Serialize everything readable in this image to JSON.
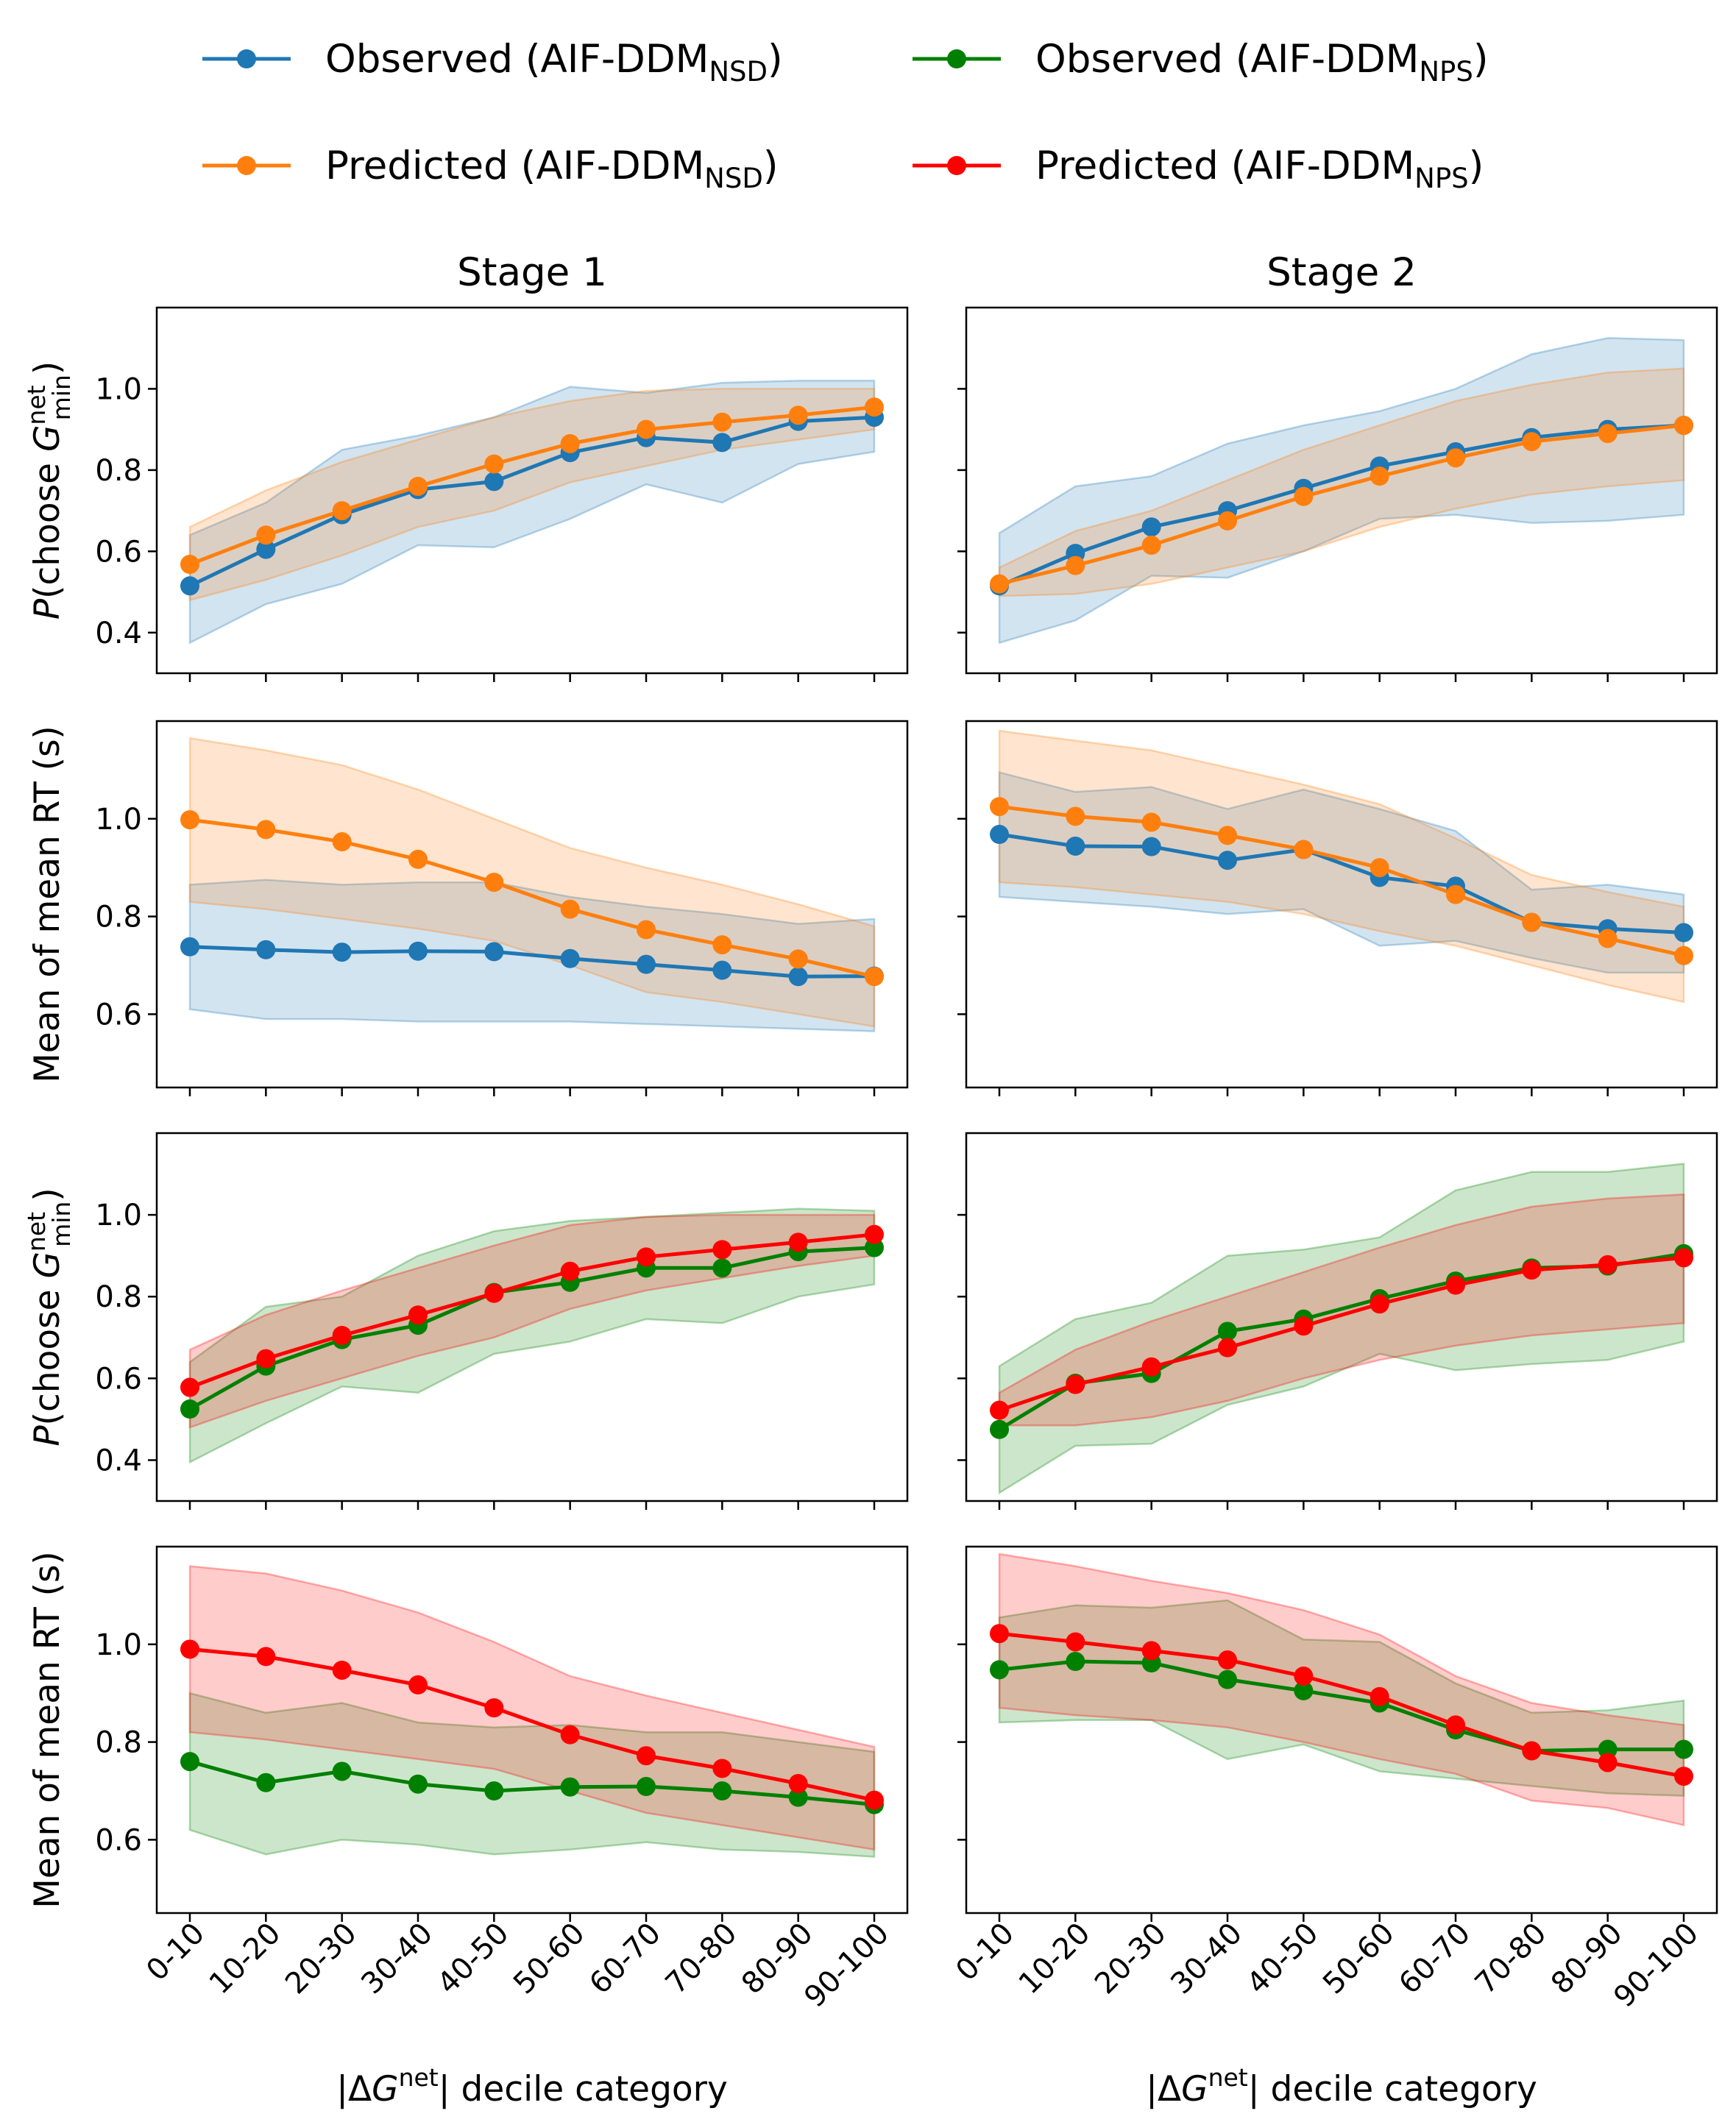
{
  "legend": [
    {
      "base": "Observed (AIF-DDM",
      "sub": "NSD",
      "tail": ")",
      "color": "#1f77b4"
    },
    {
      "base": "Observed (AIF-DDM",
      "sub": "NPS",
      "tail": ")",
      "color": "#008000"
    },
    {
      "base": "Predicted (AIF-DDM",
      "sub": "NSD",
      "tail": ")",
      "color": "#ff7f0e"
    },
    {
      "base": "Predicted (AIF-DDM",
      "sub": "NPS",
      "tail": ")",
      "color": "#ff0000"
    }
  ],
  "column_titles": [
    "Stage 1",
    "Stage 2"
  ],
  "xlabel": {
    "pre": "|ΔG",
    "sup": "net",
    "post": "| decile category"
  },
  "ylabel_rt": "Mean of mean RT (s)",
  "ylabel_p": {
    "italic": "P",
    "pre": "(choose ",
    "var": "G",
    "sup": "net",
    "sub": "min",
    "post": ")"
  },
  "colors": {
    "blue": "#1f77b4",
    "orange": "#ff7f0e",
    "green": "#008000",
    "red": "#ff0000"
  },
  "chart_data": [
    {
      "id": "r0c0",
      "type": "line",
      "row": 0,
      "col": 0,
      "ylabel": "p",
      "categories": [
        "0-10",
        "10-20",
        "20-30",
        "30-40",
        "40-50",
        "50-60",
        "60-70",
        "70-80",
        "80-90",
        "90-100"
      ],
      "ylim": [
        0.3,
        1.2
      ],
      "yticks": [
        0.4,
        0.6,
        0.8,
        1.0
      ],
      "series": [
        {
          "name": "Observed (AIF-DDM NSD)",
          "color": "#1f77b4",
          "values": [
            0.515,
            0.605,
            0.69,
            0.752,
            0.772,
            0.843,
            0.88,
            0.868,
            0.92,
            0.93
          ],
          "lower": [
            0.375,
            0.47,
            0.52,
            0.615,
            0.61,
            0.68,
            0.765,
            0.72,
            0.815,
            0.845
          ],
          "upper": [
            0.64,
            0.72,
            0.85,
            0.885,
            0.93,
            1.005,
            0.99,
            1.015,
            1.02,
            1.02
          ]
        },
        {
          "name": "Predicted (AIF-DDM NSD)",
          "color": "#ff7f0e",
          "values": [
            0.568,
            0.64,
            0.7,
            0.76,
            0.815,
            0.865,
            0.9,
            0.918,
            0.935,
            0.955
          ],
          "lower": [
            0.48,
            0.53,
            0.59,
            0.66,
            0.7,
            0.77,
            0.81,
            0.85,
            0.875,
            0.9
          ],
          "upper": [
            0.66,
            0.75,
            0.82,
            0.875,
            0.93,
            0.97,
            0.995,
            1.0,
            1.0,
            1.0
          ]
        }
      ]
    },
    {
      "id": "r0c1",
      "type": "line",
      "row": 0,
      "col": 1,
      "ylabel": "p",
      "categories": [
        "0-10",
        "10-20",
        "20-30",
        "30-40",
        "40-50",
        "50-60",
        "60-70",
        "70-80",
        "80-90",
        "90-100"
      ],
      "ylim": [
        0.3,
        1.2
      ],
      "yticks": [
        0.4,
        0.6,
        0.8,
        1.0
      ],
      "series": [
        {
          "name": "Observed (AIF-DDM NSD)",
          "color": "#1f77b4",
          "values": [
            0.515,
            0.595,
            0.66,
            0.7,
            0.755,
            0.81,
            0.845,
            0.88,
            0.9,
            0.91
          ],
          "lower": [
            0.375,
            0.43,
            0.54,
            0.535,
            0.6,
            0.68,
            0.69,
            0.67,
            0.675,
            0.69
          ],
          "upper": [
            0.645,
            0.76,
            0.785,
            0.865,
            0.91,
            0.945,
            1.0,
            1.085,
            1.125,
            1.12
          ]
        },
        {
          "name": "Predicted (AIF-DDM NSD)",
          "color": "#ff7f0e",
          "values": [
            0.52,
            0.565,
            0.615,
            0.675,
            0.735,
            0.785,
            0.83,
            0.87,
            0.89,
            0.91
          ],
          "lower": [
            0.49,
            0.495,
            0.52,
            0.56,
            0.6,
            0.66,
            0.705,
            0.74,
            0.76,
            0.775
          ],
          "upper": [
            0.56,
            0.65,
            0.7,
            0.775,
            0.85,
            0.91,
            0.97,
            1.01,
            1.04,
            1.05
          ]
        }
      ]
    },
    {
      "id": "r1c0",
      "type": "line",
      "row": 1,
      "col": 0,
      "ylabel": "rt",
      "categories": [
        "0-10",
        "10-20",
        "20-30",
        "30-40",
        "40-50",
        "50-60",
        "60-70",
        "70-80",
        "80-90",
        "90-100"
      ],
      "ylim": [
        0.45,
        1.2
      ],
      "yticks": [
        0.6,
        0.8,
        1.0
      ],
      "series": [
        {
          "name": "Observed (AIF-DDM NSD)",
          "color": "#1f77b4",
          "values": [
            0.738,
            0.732,
            0.727,
            0.729,
            0.728,
            0.714,
            0.702,
            0.69,
            0.677,
            0.678
          ],
          "lower": [
            0.61,
            0.59,
            0.59,
            0.585,
            0.585,
            0.585,
            0.58,
            0.575,
            0.57,
            0.565
          ],
          "upper": [
            0.865,
            0.875,
            0.865,
            0.87,
            0.87,
            0.84,
            0.82,
            0.805,
            0.785,
            0.795
          ]
        },
        {
          "name": "Predicted (AIF-DDM NSD)",
          "color": "#ff7f0e",
          "values": [
            0.998,
            0.978,
            0.953,
            0.917,
            0.87,
            0.815,
            0.773,
            0.742,
            0.713,
            0.677
          ],
          "lower": [
            0.83,
            0.815,
            0.795,
            0.775,
            0.75,
            0.7,
            0.645,
            0.625,
            0.6,
            0.575
          ],
          "upper": [
            1.165,
            1.14,
            1.11,
            1.06,
            1.0,
            0.94,
            0.9,
            0.865,
            0.825,
            0.78
          ]
        }
      ]
    },
    {
      "id": "r1c1",
      "type": "line",
      "row": 1,
      "col": 1,
      "ylabel": "rt",
      "categories": [
        "0-10",
        "10-20",
        "20-30",
        "30-40",
        "40-50",
        "50-60",
        "60-70",
        "70-80",
        "80-90",
        "90-100"
      ],
      "ylim": [
        0.45,
        1.2
      ],
      "yticks": [
        0.6,
        0.8,
        1.0
      ],
      "series": [
        {
          "name": "Observed (AIF-DDM NSD)",
          "color": "#1f77b4",
          "values": [
            0.968,
            0.944,
            0.943,
            0.915,
            0.937,
            0.88,
            0.862,
            0.788,
            0.775,
            0.767
          ],
          "lower": [
            0.84,
            0.83,
            0.82,
            0.805,
            0.815,
            0.74,
            0.75,
            0.715,
            0.685,
            0.685
          ],
          "upper": [
            1.095,
            1.055,
            1.065,
            1.02,
            1.06,
            1.02,
            0.975,
            0.855,
            0.865,
            0.845
          ]
        },
        {
          "name": "Predicted (AIF-DDM NSD)",
          "color": "#ff7f0e",
          "values": [
            1.025,
            1.005,
            0.993,
            0.966,
            0.937,
            0.9,
            0.845,
            0.788,
            0.755,
            0.72
          ],
          "lower": [
            0.87,
            0.86,
            0.845,
            0.83,
            0.805,
            0.77,
            0.74,
            0.7,
            0.66,
            0.625
          ],
          "upper": [
            1.18,
            1.16,
            1.14,
            1.105,
            1.07,
            1.03,
            0.96,
            0.885,
            0.85,
            0.82
          ]
        }
      ]
    },
    {
      "id": "r2c0",
      "type": "line",
      "row": 2,
      "col": 0,
      "ylabel": "p",
      "categories": [
        "0-10",
        "10-20",
        "20-30",
        "30-40",
        "40-50",
        "50-60",
        "60-70",
        "70-80",
        "80-90",
        "90-100"
      ],
      "ylim": [
        0.3,
        1.2
      ],
      "yticks": [
        0.4,
        0.6,
        0.8,
        1.0
      ],
      "series": [
        {
          "name": "Observed (AIF-DDM NPS)",
          "color": "#008000",
          "values": [
            0.525,
            0.63,
            0.695,
            0.73,
            0.81,
            0.835,
            0.87,
            0.87,
            0.91,
            0.92
          ],
          "lower": [
            0.395,
            0.49,
            0.58,
            0.565,
            0.66,
            0.69,
            0.745,
            0.735,
            0.8,
            0.83
          ],
          "upper": [
            0.64,
            0.775,
            0.8,
            0.9,
            0.96,
            0.985,
            0.995,
            1.005,
            1.015,
            1.01
          ]
        },
        {
          "name": "Predicted (AIF-DDM NPS)",
          "color": "#ff0000",
          "values": [
            0.578,
            0.648,
            0.705,
            0.755,
            0.808,
            0.862,
            0.897,
            0.915,
            0.933,
            0.952
          ],
          "lower": [
            0.48,
            0.545,
            0.6,
            0.655,
            0.7,
            0.77,
            0.815,
            0.845,
            0.875,
            0.9
          ],
          "upper": [
            0.67,
            0.755,
            0.815,
            0.87,
            0.925,
            0.975,
            0.995,
            1.0,
            1.0,
            1.0
          ]
        }
      ]
    },
    {
      "id": "r2c1",
      "type": "line",
      "row": 2,
      "col": 1,
      "ylabel": "p",
      "categories": [
        "0-10",
        "10-20",
        "20-30",
        "30-40",
        "40-50",
        "50-60",
        "60-70",
        "70-80",
        "80-90",
        "90-100"
      ],
      "ylim": [
        0.3,
        1.2
      ],
      "yticks": [
        0.4,
        0.6,
        0.8,
        1.0
      ],
      "series": [
        {
          "name": "Observed (AIF-DDM NPS)",
          "color": "#008000",
          "values": [
            0.475,
            0.588,
            0.612,
            0.715,
            0.745,
            0.795,
            0.838,
            0.87,
            0.875,
            0.905
          ],
          "lower": [
            0.32,
            0.435,
            0.44,
            0.535,
            0.58,
            0.66,
            0.62,
            0.635,
            0.645,
            0.69
          ],
          "upper": [
            0.63,
            0.745,
            0.785,
            0.9,
            0.915,
            0.945,
            1.06,
            1.105,
            1.105,
            1.125
          ]
        },
        {
          "name": "Predicted (AIF-DDM NPS)",
          "color": "#ff0000",
          "values": [
            0.522,
            0.585,
            0.628,
            0.675,
            0.728,
            0.782,
            0.828,
            0.865,
            0.878,
            0.895
          ],
          "lower": [
            0.485,
            0.485,
            0.505,
            0.545,
            0.6,
            0.645,
            0.68,
            0.705,
            0.72,
            0.735
          ],
          "upper": [
            0.565,
            0.67,
            0.74,
            0.8,
            0.86,
            0.92,
            0.975,
            1.02,
            1.04,
            1.05
          ]
        }
      ]
    },
    {
      "id": "r3c0",
      "type": "line",
      "row": 3,
      "col": 0,
      "ylabel": "rt",
      "categories": [
        "0-10",
        "10-20",
        "20-30",
        "30-40",
        "40-50",
        "50-60",
        "60-70",
        "70-80",
        "80-90",
        "90-100"
      ],
      "ylim": [
        0.45,
        1.2
      ],
      "yticks": [
        0.6,
        0.8,
        1.0
      ],
      "series": [
        {
          "name": "Observed (AIF-DDM NPS)",
          "color": "#008000",
          "values": [
            0.76,
            0.717,
            0.74,
            0.714,
            0.7,
            0.708,
            0.709,
            0.7,
            0.687,
            0.672
          ],
          "lower": [
            0.62,
            0.57,
            0.6,
            0.59,
            0.57,
            0.58,
            0.595,
            0.58,
            0.575,
            0.565
          ],
          "upper": [
            0.9,
            0.86,
            0.88,
            0.84,
            0.83,
            0.835,
            0.82,
            0.82,
            0.8,
            0.78
          ]
        },
        {
          "name": "Predicted (AIF-DDM NPS)",
          "color": "#ff0000",
          "values": [
            0.99,
            0.975,
            0.947,
            0.917,
            0.87,
            0.815,
            0.772,
            0.746,
            0.715,
            0.681
          ],
          "lower": [
            0.82,
            0.805,
            0.785,
            0.765,
            0.745,
            0.7,
            0.655,
            0.63,
            0.605,
            0.58
          ],
          "upper": [
            1.16,
            1.145,
            1.11,
            1.065,
            1.005,
            0.935,
            0.895,
            0.86,
            0.825,
            0.79
          ]
        }
      ]
    },
    {
      "id": "r3c1",
      "type": "line",
      "row": 3,
      "col": 1,
      "ylabel": "rt",
      "categories": [
        "0-10",
        "10-20",
        "20-30",
        "30-40",
        "40-50",
        "50-60",
        "60-70",
        "70-80",
        "80-90",
        "90-100"
      ],
      "ylim": [
        0.45,
        1.2
      ],
      "yticks": [
        0.6,
        0.8,
        1.0
      ],
      "series": [
        {
          "name": "Observed (AIF-DDM NPS)",
          "color": "#008000",
          "values": [
            0.948,
            0.965,
            0.962,
            0.928,
            0.905,
            0.88,
            0.825,
            0.782,
            0.785,
            0.785
          ],
          "lower": [
            0.84,
            0.845,
            0.845,
            0.765,
            0.795,
            0.74,
            0.725,
            0.71,
            0.695,
            0.69
          ],
          "upper": [
            1.055,
            1.08,
            1.075,
            1.09,
            1.01,
            1.005,
            0.92,
            0.86,
            0.865,
            0.885
          ]
        },
        {
          "name": "Predicted (AIF-DDM NPS)",
          "color": "#ff0000",
          "values": [
            1.022,
            1.005,
            0.987,
            0.968,
            0.935,
            0.893,
            0.835,
            0.782,
            0.758,
            0.73
          ],
          "lower": [
            0.87,
            0.855,
            0.845,
            0.83,
            0.8,
            0.765,
            0.735,
            0.68,
            0.665,
            0.63
          ],
          "upper": [
            1.185,
            1.16,
            1.13,
            1.105,
            1.07,
            1.02,
            0.935,
            0.88,
            0.855,
            0.835
          ]
        }
      ]
    }
  ]
}
